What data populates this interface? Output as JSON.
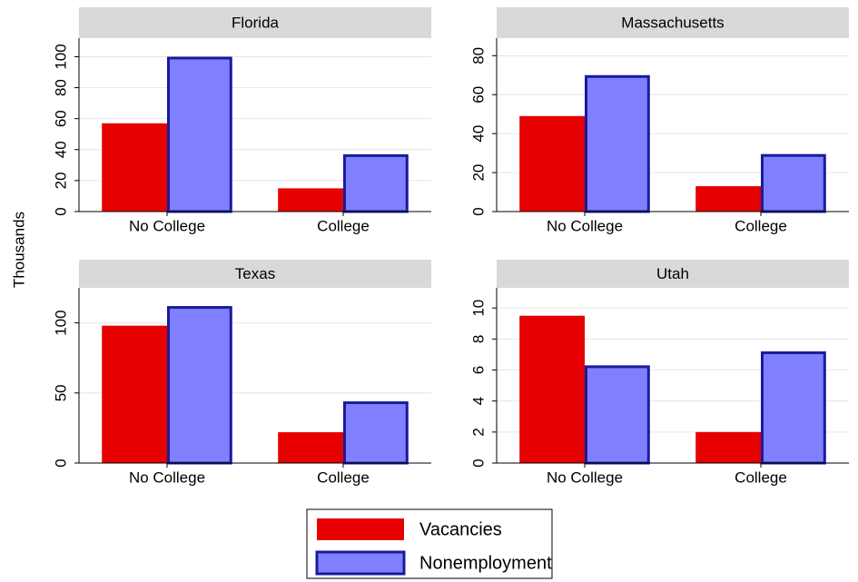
{
  "y_label": "Thousands",
  "chart_data": [
    {
      "type": "bar",
      "title": "Florida",
      "categories": [
        "No College",
        "College"
      ],
      "series": [
        {
          "name": "Vacancies",
          "color": "#e60000",
          "values": [
            57,
            15
          ]
        },
        {
          "name": "Nonemployment",
          "color": "#8080ff",
          "edgecolor": "#1a1a9c",
          "values": [
            100,
            37
          ]
        }
      ],
      "ylim": [
        0,
        112
      ],
      "yticks": [
        0,
        20,
        40,
        60,
        80,
        100
      ],
      "grid": true
    },
    {
      "type": "bar",
      "title": "Massachusetts",
      "categories": [
        "No College",
        "College"
      ],
      "series": [
        {
          "name": "Vacancies",
          "color": "#e60000",
          "values": [
            49,
            13
          ]
        },
        {
          "name": "Nonemployment",
          "color": "#8080ff",
          "edgecolor": "#1a1a9c",
          "values": [
            70,
            29.5
          ]
        }
      ],
      "ylim": [
        0,
        89
      ],
      "yticks": [
        0,
        20,
        40,
        60,
        80
      ],
      "grid": true
    },
    {
      "type": "bar",
      "title": "Texas",
      "categories": [
        "No College",
        "College"
      ],
      "series": [
        {
          "name": "Vacancies",
          "color": "#e60000",
          "values": [
            98,
            22
          ]
        },
        {
          "name": "Nonemployment",
          "color": "#8080ff",
          "edgecolor": "#1a1a9c",
          "values": [
            112,
            44
          ]
        }
      ],
      "ylim": [
        0,
        125
      ],
      "yticks": [
        0,
        50,
        100
      ],
      "grid": true
    },
    {
      "type": "bar",
      "title": "Utah",
      "categories": [
        "No College",
        "College"
      ],
      "series": [
        {
          "name": "Vacancies",
          "color": "#e60000",
          "values": [
            9.5,
            2
          ]
        },
        {
          "name": "Nonemployment",
          "color": "#8080ff",
          "edgecolor": "#1a1a9c",
          "values": [
            6.3,
            7.2
          ]
        }
      ],
      "ylim": [
        0,
        11.3
      ],
      "yticks": [
        0,
        2,
        4,
        6,
        8,
        10
      ],
      "grid": true
    }
  ]
}
